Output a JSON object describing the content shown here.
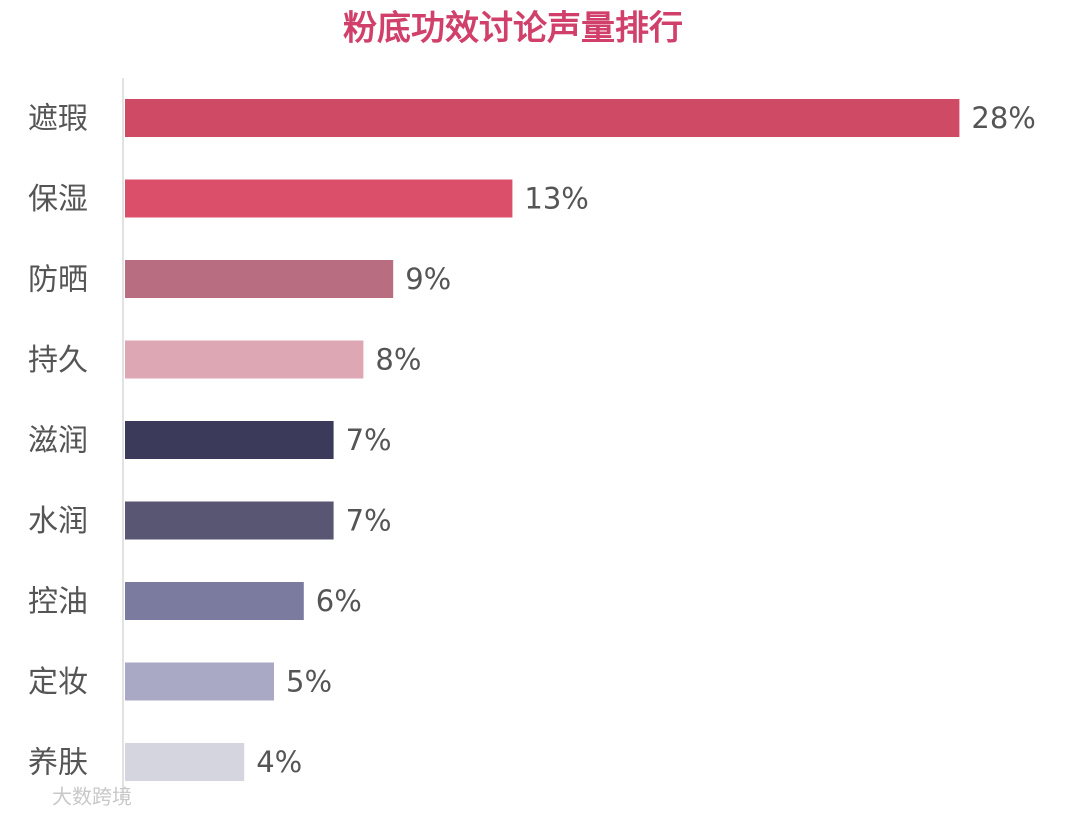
{
  "chart_data": {
    "type": "bar",
    "orientation": "horizontal",
    "title": "粉底功效讨论声量排行",
    "categories": [
      "遮瑕",
      "保湿",
      "防晒",
      "持久",
      "滋润",
      "水润",
      "控油",
      "定妆",
      "养肤"
    ],
    "values": [
      28,
      13,
      9,
      8,
      7,
      7,
      6,
      5,
      4
    ],
    "value_labels": [
      "28%",
      "13%",
      "9%",
      "8%",
      "7%",
      "7%",
      "6%",
      "5%",
      "4%"
    ],
    "colors": [
      "#cf4a64",
      "#dc4f6a",
      "#b86d80",
      "#dea7b4",
      "#3b3a5a",
      "#585673",
      "#7b7ba0",
      "#a9a9c6",
      "#d5d5df"
    ]
  },
  "watermark": "大数跨境"
}
